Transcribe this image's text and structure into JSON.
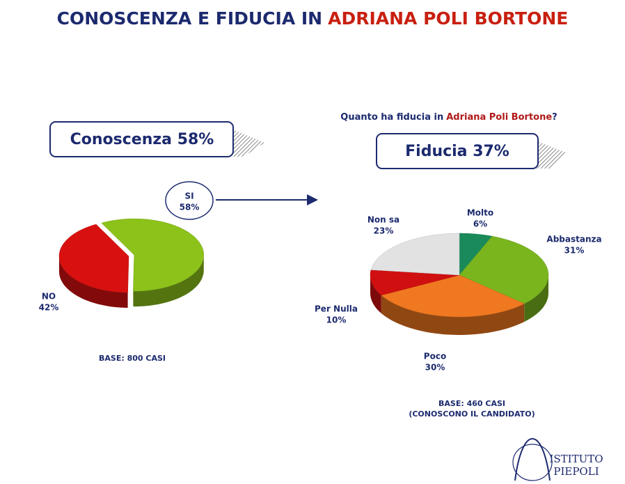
{
  "header": {
    "title": "CONOSCENZA E FIDUCIA IN",
    "title_name": "ADRIANA POLI BORTONE"
  },
  "chart_data": [
    {
      "type": "pie",
      "title": "Conoscenza 58%",
      "categories": [
        "SI",
        "NO"
      ],
      "values": [
        58,
        42
      ],
      "value_labels": [
        "58%",
        "42%"
      ],
      "colors": [
        "#8cc21a",
        "#d81010"
      ],
      "base": "BASE: 800 CASI"
    },
    {
      "type": "pie",
      "question": [
        "Quanto ha fiducia in",
        "Adriana Poli Bortone",
        "?"
      ],
      "title": "Fiducia 37%",
      "categories": [
        "Molto",
        "Abbastanza",
        "Poco",
        "Per Nulla",
        "Non sa"
      ],
      "values": [
        6,
        31,
        30,
        10,
        23
      ],
      "value_labels": [
        "6%",
        "31%",
        "30%",
        "10%",
        "23%"
      ],
      "colors": [
        "#1a8a5a",
        "#7ab51e",
        "#f07820",
        "#d01010",
        "#e2e2e2"
      ],
      "base": [
        "BASE: 460 CASI",
        "(CONOSCONO IL CANDIDATO)"
      ]
    }
  ],
  "logo": [
    "ISTITUTO",
    "PIEPOLI"
  ]
}
